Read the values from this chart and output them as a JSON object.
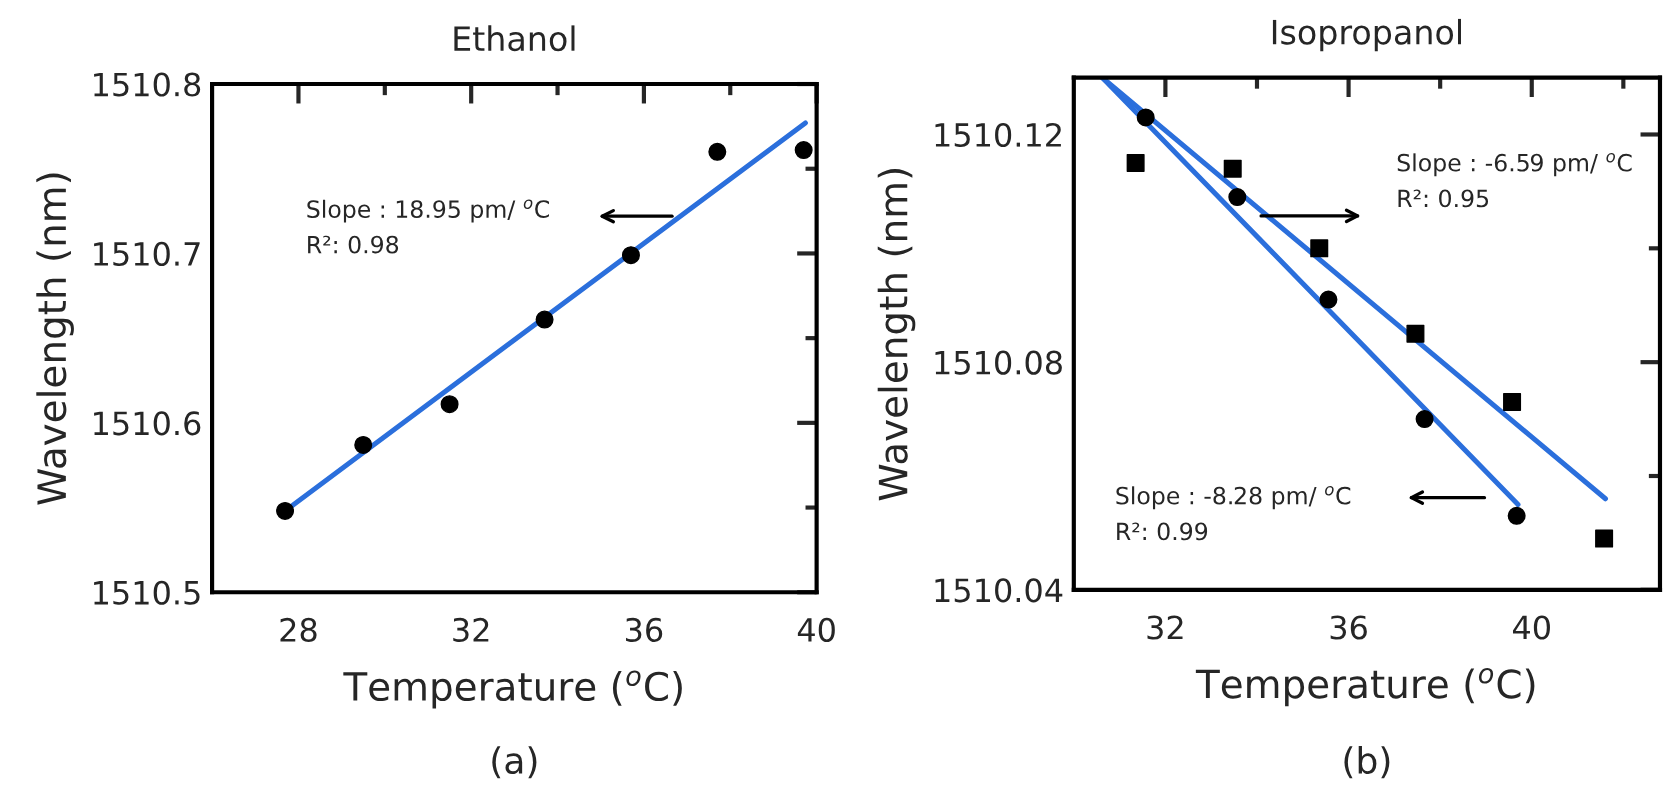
{
  "chart_data": [
    {
      "type": "scatter",
      "title": "Ethanol",
      "xlabel": "Temperature ($^{o}$C)",
      "ylabel": "Wavelength (nm)",
      "xlim": [
        26,
        40
      ],
      "ylim": [
        1510.5,
        1510.8
      ],
      "xticks": [
        28,
        {
          "value": 30,
          "label": null
        },
        32,
        {
          "value": 34,
          "label": null
        },
        36,
        {
          "value": 38,
          "label": null
        },
        40
      ],
      "yticks": [
        1510.5,
        {
          "value": 1510.55,
          "label": null
        },
        1510.6,
        {
          "value": 1510.65,
          "label": null
        },
        1510.7,
        {
          "value": 1510.75,
          "label": null
        },
        1510.8
      ],
      "grid": false,
      "legend": false,
      "series": [
        {
          "marker": "circle",
          "color": "#000000",
          "x": [
            27.69,
            29.5,
            31.5,
            33.7,
            35.7,
            37.7,
            39.7
          ],
          "values": [
            1510.548,
            1510.587,
            1510.611,
            1510.661,
            1510.699,
            1510.76,
            1510.761
          ]
        },
        {
          "type": "line",
          "marker": "none",
          "line_style": "solid",
          "color": "#2b6fdc",
          "x": [
            27.69,
            39.74
          ],
          "values": [
            1510.548,
            1510.777
          ]
        }
      ],
      "annotations": [
        "Slope : 18.95 pm/ $^{o}$C",
        "R²: 0.98",
        "(a)"
      ]
    },
    {
      "type": "scatter",
      "title": "Isopropanol",
      "xlabel": "Temperature ($^{o}$C)",
      "ylabel": "Wavelength (nm)",
      "xlim": [
        30,
        42.8
      ],
      "ylim": [
        1510.04,
        1510.13
      ],
      "xticks": [
        32,
        {
          "value": 34,
          "label": null
        },
        36,
        {
          "value": 38,
          "label": null
        },
        40,
        {
          "value": 42,
          "label": null
        }
      ],
      "yticks": [
        1510.04,
        {
          "value": 1510.06,
          "label": null
        },
        1510.08,
        {
          "value": 1510.1,
          "label": null
        },
        1510.12
      ],
      "grid": false,
      "legend": false,
      "series": [
        {
          "marker": "circle",
          "color": "#000000",
          "x": [
            31.57,
            33.57,
            35.56,
            37.66,
            39.67
          ],
          "values": [
            1510.123,
            1510.109,
            1510.091,
            1510.07,
            1510.053
          ]
        },
        {
          "marker": "square",
          "color": "#000000",
          "x": [
            31.35,
            33.47,
            35.36,
            37.46,
            39.57,
            41.58
          ],
          "values": [
            1510.115,
            1510.114,
            1510.1,
            1510.085,
            1510.073,
            1510.049
          ]
        },
        {
          "type": "line",
          "marker": "none",
          "line_style": "solid",
          "color": "#2b6fdc",
          "x": [
            30.62,
            39.7
          ],
          "values": [
            1510.13,
            1510.055
          ]
        },
        {
          "type": "line",
          "marker": "none",
          "line_style": "solid",
          "color": "#2b6fdc",
          "x": [
            30.62,
            41.61
          ],
          "values": [
            1510.13,
            1510.056
          ]
        }
      ],
      "annotations": [
        "Slope : -6.59 pm/ $^{o}$C",
        "R²: 0.95",
        "Slope : -8.28 pm/ $^{o}$C",
        "R²: 0.99",
        "(b)"
      ]
    }
  ]
}
